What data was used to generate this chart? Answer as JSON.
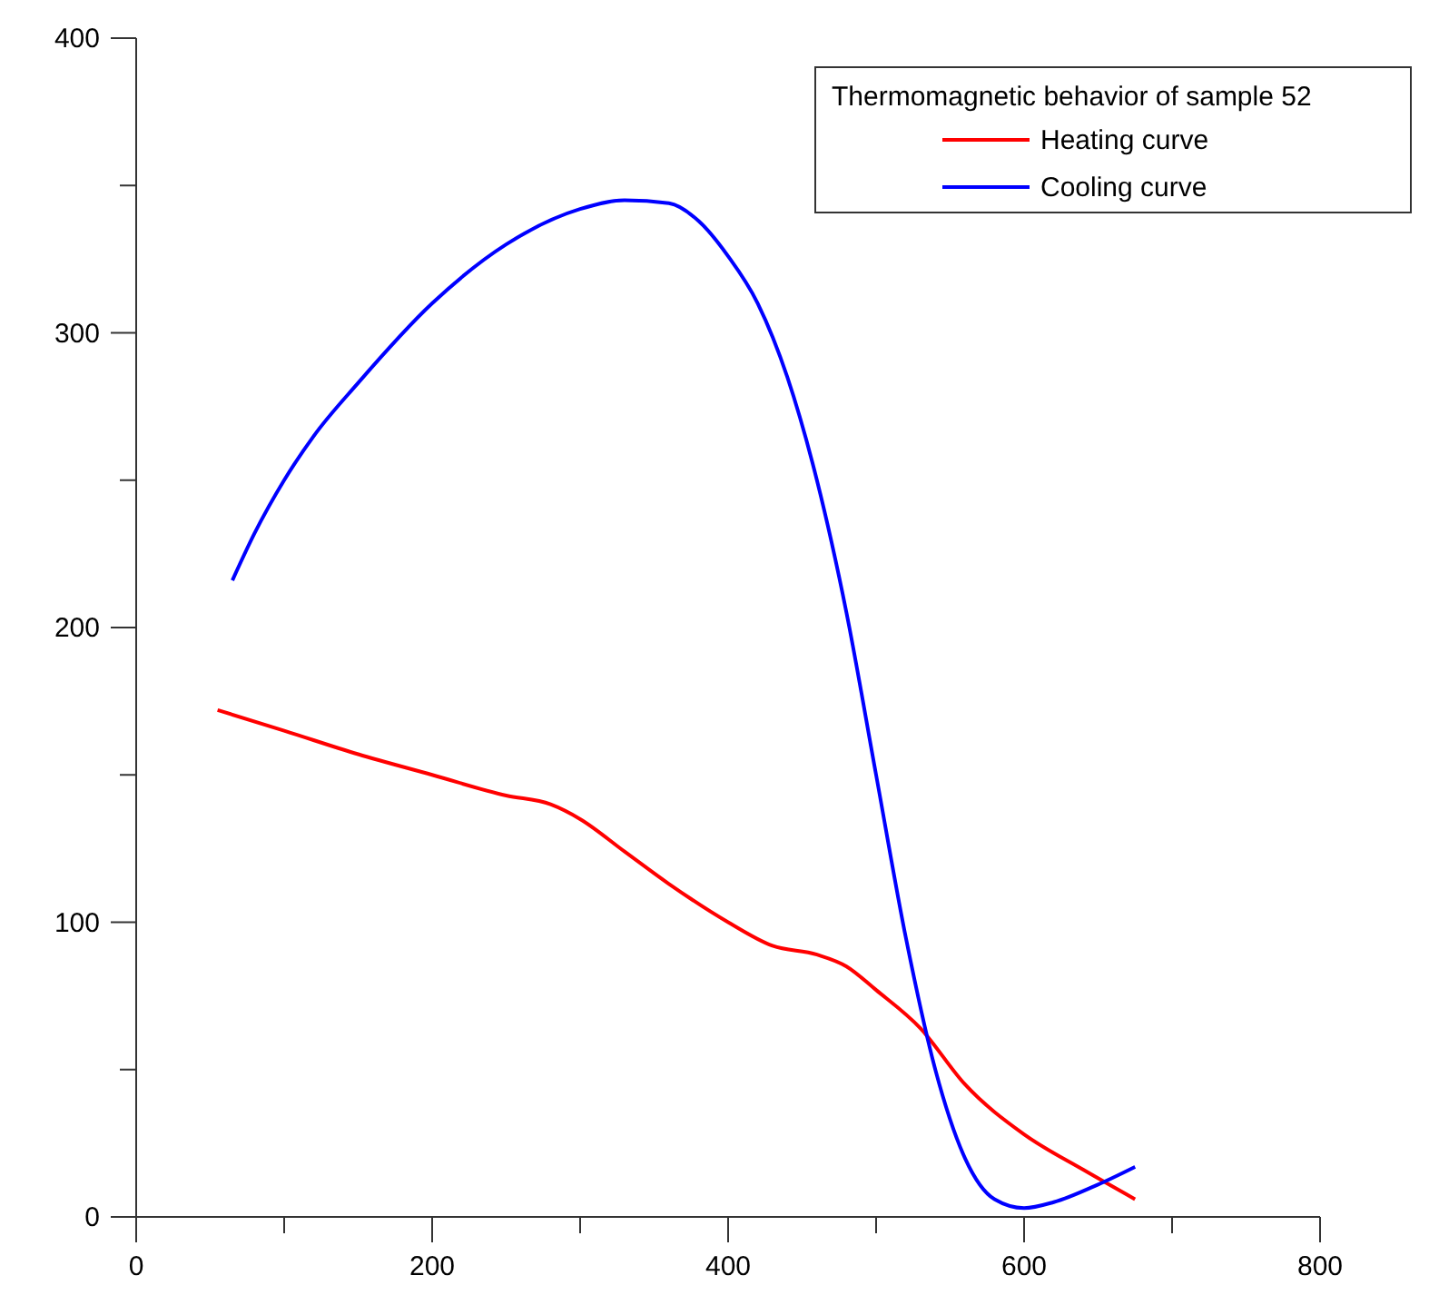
{
  "chart_data": {
    "type": "line",
    "legend_title": "Thermomagnetic behavior of sample 52",
    "legend": "top right",
    "grid": false,
    "marker": "none",
    "line_style": "solid",
    "xlim": [
      0,
      800
    ],
    "xticks": [
      0,
      {
        "value": 100,
        "label": null
      },
      200,
      {
        "value": 300,
        "label": null
      },
      400,
      {
        "value": 500,
        "label": null
      },
      600,
      {
        "value": 700,
        "label": null
      },
      800
    ],
    "ylim": [
      0,
      400
    ],
    "yticks": [
      0,
      {
        "value": 50,
        "label": null
      },
      100,
      {
        "value": 150,
        "label": null
      },
      200,
      {
        "value": 250,
        "label": null
      },
      300,
      {
        "value": 350,
        "label": null
      },
      400
    ],
    "series": [
      {
        "name": "Heating curve",
        "color": "#ff0000",
        "x": [
          55,
          100,
          150,
          200,
          250,
          280,
          300,
          330,
          360,
          400,
          430,
          460,
          480,
          500,
          530,
          560,
          600,
          640,
          675
        ],
        "values": [
          172,
          165,
          157,
          150,
          143,
          140,
          135,
          124,
          113,
          100,
          92,
          89,
          85,
          77,
          64,
          45,
          28,
          16,
          6
        ]
      },
      {
        "name": "Cooling curve",
        "color": "#0000ff",
        "x": [
          65,
          80,
          100,
          120,
          150,
          200,
          250,
          300,
          330,
          360,
          380,
          400,
          420,
          440,
          460,
          480,
          500,
          520,
          540,
          560,
          580,
          600,
          620,
          650,
          675
        ],
        "values": [
          216,
          232,
          250,
          265,
          283,
          310,
          330,
          342,
          345,
          344,
          338,
          326,
          310,
          285,
          250,
          205,
          150,
          95,
          50,
          20,
          6,
          3,
          5,
          11,
          17
        ]
      }
    ]
  }
}
